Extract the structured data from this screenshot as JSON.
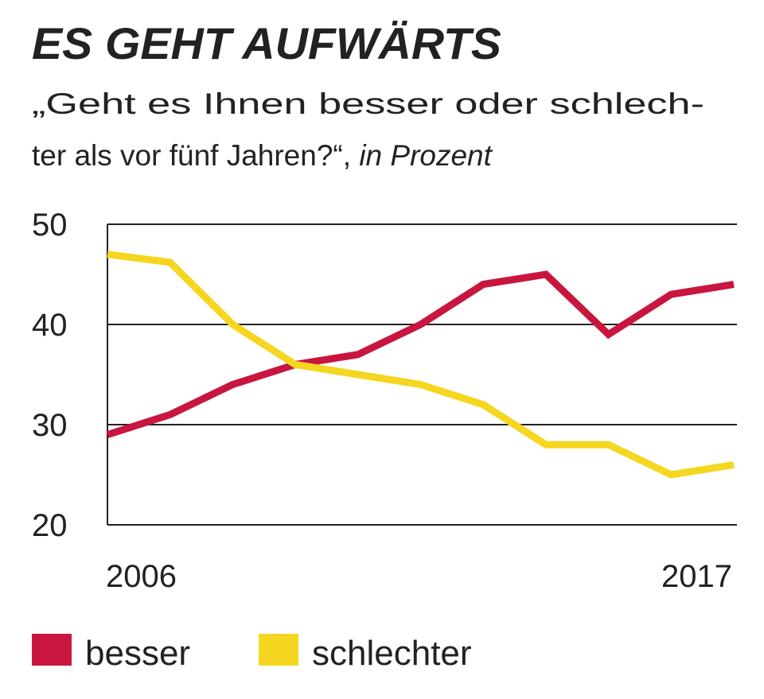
{
  "chart_data": {
    "type": "line",
    "title": "ES GEHT AUFWÄRTS",
    "subtitle_lines": [
      "„Geht es Ihnen besser oder schlech-",
      "ter als vor fünf Jahren?“, "
    ],
    "subtitle_unit": "in Prozent",
    "categories": [
      "2006",
      null,
      null,
      null,
      null,
      null,
      null,
      null,
      null,
      null,
      "2017"
    ],
    "series": [
      {
        "name": "besser",
        "color": "#c8163f",
        "values": [
          29,
          31,
          34,
          36,
          37,
          40,
          44,
          45,
          39,
          43,
          44
        ]
      },
      {
        "name": "schlechter",
        "color": "#f5d620",
        "values": [
          47,
          46.2,
          40,
          36,
          35,
          34,
          32,
          28,
          28,
          25,
          26
        ]
      }
    ],
    "ylim": [
      20,
      50
    ],
    "yticks": [
      20,
      30,
      40,
      50
    ],
    "grid": true,
    "legend": "bottom"
  }
}
